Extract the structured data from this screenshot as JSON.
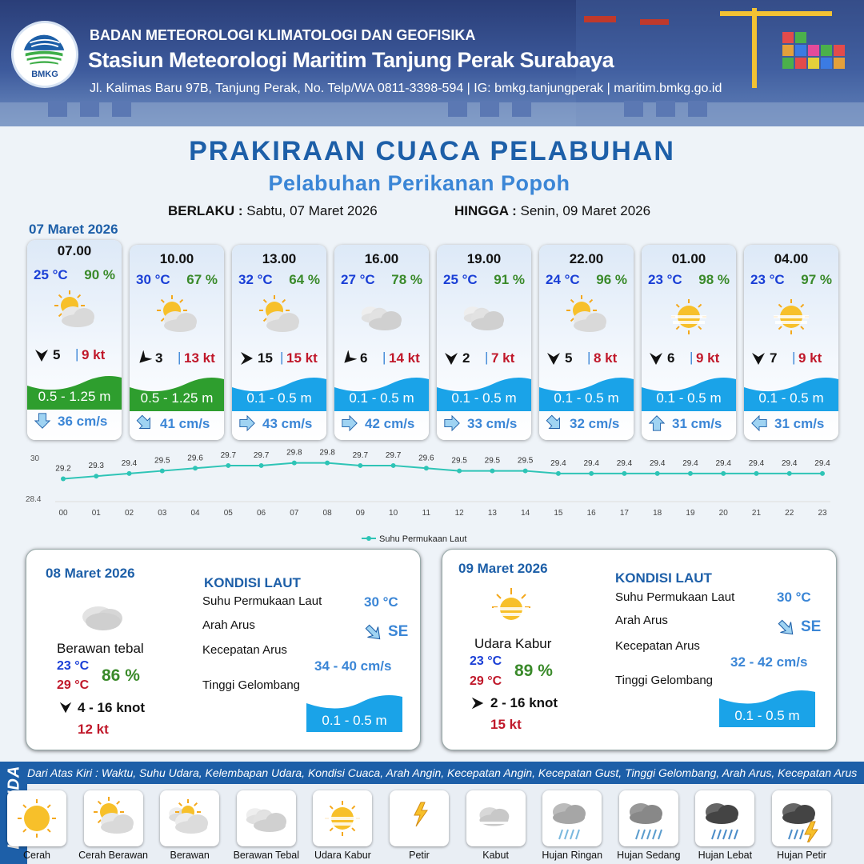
{
  "header": {
    "line1": "BADAN METEOROLOGI KLIMATOLOGI DAN GEOFISIKA",
    "line2": "Stasiun Meteorologi Maritim Tanjung Perak Surabaya",
    "line3": "Jl. Kalimas Baru 97B, Tanjung Perak, No. Telp/WA 0811-3398-594 | IG: bmkg.tanjungperak | maritim.bmkg.go.id",
    "logo_text": "BMKG"
  },
  "title": "PRAKIRAAN CUACA PELABUHAN",
  "subtitle": "Pelabuhan Perikanan Popoh",
  "valid": {
    "from_label": "BERLAKU :",
    "from_value": "Sabtu, 07 Maret 2026",
    "to_label": "HINGGA :",
    "to_value": "Senin, 09 Maret 2026"
  },
  "day1_date": "07 Maret 2026",
  "hourly": [
    {
      "time": "07.00",
      "temp": "25 °C",
      "hum": "90 %",
      "icon": "cerah-berawan-icon",
      "wind_dir": "S",
      "wind": "5",
      "gust": "9 kt",
      "wave": "0.5 - 1.25 m",
      "wave_color": "#2e9e2e",
      "curr_dir": "S",
      "curr": "36 cm/s"
    },
    {
      "time": "10.00",
      "temp": "30 °C",
      "hum": "67 %",
      "icon": "cerah-berawan-icon",
      "wind_dir": "SW",
      "wind": "3",
      "gust": "13 kt",
      "wave": "0.5 - 1.25 m",
      "wave_color": "#2e9e2e",
      "curr_dir": "SE",
      "curr": "41 cm/s"
    },
    {
      "time": "13.00",
      "temp": "32 °C",
      "hum": "64 %",
      "icon": "cerah-berawan-icon",
      "wind_dir": "E",
      "wind": "15",
      "gust": "15 kt",
      "wave": "0.1 - 0.5 m",
      "wave_color": "#1aa3e8",
      "curr_dir": "E",
      "curr": "43 cm/s"
    },
    {
      "time": "16.00",
      "temp": "27 °C",
      "hum": "78 %",
      "icon": "berawan-tebal-icon",
      "wind_dir": "SW",
      "wind": "6",
      "gust": "14 kt",
      "wave": "0.1 - 0.5 m",
      "wave_color": "#1aa3e8",
      "curr_dir": "E",
      "curr": "42 cm/s"
    },
    {
      "time": "19.00",
      "temp": "25 °C",
      "hum": "91 %",
      "icon": "berawan-tebal-icon",
      "wind_dir": "S",
      "wind": "2",
      "gust": "7 kt",
      "wave": "0.1 - 0.5 m",
      "wave_color": "#1aa3e8",
      "curr_dir": "E",
      "curr": "33 cm/s"
    },
    {
      "time": "22.00",
      "temp": "24 °C",
      "hum": "96 %",
      "icon": "cerah-berawan-icon",
      "wind_dir": "S",
      "wind": "5",
      "gust": "8 kt",
      "wave": "0.1 - 0.5 m",
      "wave_color": "#1aa3e8",
      "curr_dir": "SE",
      "curr": "32 cm/s"
    },
    {
      "time": "01.00",
      "temp": "23 °C",
      "hum": "98 %",
      "icon": "udara-kabur-icon",
      "wind_dir": "S",
      "wind": "6",
      "gust": "9 kt",
      "wave": "0.1 - 0.5 m",
      "wave_color": "#1aa3e8",
      "curr_dir": "N",
      "curr": "31 cm/s"
    },
    {
      "time": "04.00",
      "temp": "23 °C",
      "hum": "97 %",
      "icon": "udara-kabur-icon",
      "wind_dir": "S",
      "wind": "7",
      "gust": "9 kt",
      "wave": "0.1 - 0.5 m",
      "wave_color": "#1aa3e8",
      "curr_dir": "W",
      "curr": "31 cm/s"
    }
  ],
  "chart_data": {
    "type": "line",
    "x": [
      "00",
      "01",
      "02",
      "03",
      "04",
      "05",
      "06",
      "07",
      "08",
      "09",
      "10",
      "11",
      "12",
      "13",
      "14",
      "15",
      "16",
      "17",
      "18",
      "19",
      "20",
      "21",
      "22",
      "23"
    ],
    "series": [
      {
        "name": "Suhu Permukaan Laut",
        "values": [
          29.2,
          29.3,
          29.4,
          29.5,
          29.6,
          29.7,
          29.7,
          29.8,
          29.8,
          29.7,
          29.7,
          29.6,
          29.5,
          29.5,
          29.5,
          29.4,
          29.4,
          29.4,
          29.4,
          29.4,
          29.4,
          29.4,
          29.4,
          29.4
        ]
      }
    ],
    "ylim": [
      28.4,
      30
    ],
    "yticks": [
      "30",
      "28.4"
    ],
    "color": "#2ec4b6",
    "legend": "bottom-center"
  },
  "days": [
    {
      "date": "08 Maret 2026",
      "icon": "berawan-tebal-icon",
      "condition": "Berawan tebal",
      "tmin": "23 °C",
      "tmax": "29 °C",
      "hum": "86 %",
      "wind_dir": "S",
      "wind": "4  - 16 knot",
      "gust": "12 kt",
      "sea_title": "KONDISI LAUT",
      "sst_label": "Suhu Permukaan Laut",
      "sst": "30 °C",
      "curr_dir_label": "Arah Arus",
      "curr_dir": "SE",
      "curr_speed_label": "Kecepatan Arus",
      "curr_speed": "34  - 40 cm/s",
      "wave_label": "Tinggi Gelombang",
      "wave": "0.1 - 0.5 m"
    },
    {
      "date": "09 Maret 2026",
      "icon": "udara-kabur-icon",
      "condition": "Udara Kabur",
      "tmin": "23 °C",
      "tmax": "29 °C",
      "hum": "89 %",
      "wind_dir": "E",
      "wind": "2  - 16 knot",
      "gust": "15 kt",
      "sea_title": "KONDISI LAUT",
      "sst_label": "Suhu Permukaan Laut",
      "sst": "30 °C",
      "curr_dir_label": "Arah Arus",
      "curr_dir": "SE",
      "curr_speed_label": "Kecepatan Arus",
      "curr_speed": "32  - 42 cm/s",
      "wave_label": "Tinggi Gelombang",
      "wave": "0.1 - 0.5 m"
    }
  ],
  "legend": {
    "title": "LEGENDA",
    "desc": "Dari Atas Kiri : Waktu, Suhu Udara, Kelembapan Udara, Kondisi Cuaca, Arah Angin, Kecepatan Angin, Kecepatan Gust, Tinggi Gelombang, Arah Arus, Kecepatan Arus",
    "items": [
      {
        "label": "Cerah",
        "icon": "cerah-icon"
      },
      {
        "label": "Cerah Berawan",
        "icon": "cerah-berawan-icon"
      },
      {
        "label": "Berawan",
        "icon": "berawan-icon"
      },
      {
        "label": "Berawan Tebal",
        "icon": "berawan-tebal-icon"
      },
      {
        "label": "Udara Kabur",
        "icon": "udara-kabur-icon"
      },
      {
        "label": "Petir",
        "icon": "petir-icon"
      },
      {
        "label": "Kabut",
        "icon": "kabut-icon"
      },
      {
        "label": "Hujan Ringan",
        "icon": "hujan-ringan-icon"
      },
      {
        "label": "Hujan Sedang",
        "icon": "hujan-sedang-icon"
      },
      {
        "label": "Hujan Lebat",
        "icon": "hujan-lebat-icon"
      },
      {
        "label": "Hujan Petir",
        "icon": "hujan-petir-icon"
      }
    ]
  }
}
